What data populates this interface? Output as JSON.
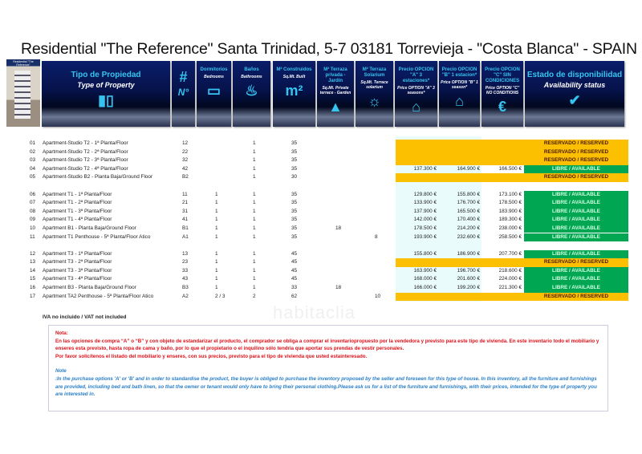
{
  "title": "Residential \"The Reference\" Santa Trinidad, 5-7   03181 Torrevieja - \"Costa Blanca\" - SPAIN",
  "logo": {
    "text": "Residential \"The Reference\""
  },
  "watermark": "habitaclia",
  "header": [
    {
      "es": "Tipo de Propiedad",
      "en": "Type of Property",
      "icon": "buildings-icon"
    },
    {
      "es": "#",
      "en": "N°",
      "icon": "hash-icon"
    },
    {
      "es": "Dormitorios",
      "en": "Bedrooms",
      "icon": "bed-icon"
    },
    {
      "es": "Baños",
      "en": "Bathrooms",
      "icon": "bath-icon"
    },
    {
      "es": "M² Construidos",
      "en": "Sq.Mt. Built",
      "icon": "m2-icon"
    },
    {
      "es": "M² Terraza privada - Jardín",
      "en": "Sq.Mt. Private terrace - Garden",
      "icon": "terrace-icon"
    },
    {
      "es": "M² Terraza Solarium",
      "en": "Sq.Mt. Terrace solarium",
      "icon": "sunbed-icon"
    },
    {
      "es": "Precio OPCION \"A\" 3 estaciones*",
      "en": "Price OPTION \"A\" 3 seasons*",
      "icon": "house-icon"
    },
    {
      "es": "Precio OPCION \"B\" 1 estacion*",
      "en": "Price OPTION \"B\" 1 season*",
      "icon": "house-icon"
    },
    {
      "es": "Precio OPCION \"C\" SIN CONDICIONES",
      "en": "Price OPTION \"C\" NO CONDITIONS",
      "icon": "euro-icon"
    },
    {
      "es": "Estado de disponibilidad",
      "en": "Availability status",
      "icon": "checkmark-icon"
    }
  ],
  "status_labels": {
    "reserved": "RESERVADO / RESERVED",
    "available": "LIBRE / AVAILABLE"
  },
  "colors": {
    "reserved": "#fdc000",
    "available": "#00a651"
  },
  "rows": [
    {
      "n": "01",
      "type": "Apartment-Studio T2 - 1ª Planta/Floor",
      "no": "12",
      "bed": "",
      "bath": "1",
      "m2": "35",
      "terr": "",
      "sol": "",
      "a": "",
      "b": "",
      "c": "",
      "status": "reserved"
    },
    {
      "n": "02",
      "type": "Apartment-Studio T2 - 2ª Planta/Floor",
      "no": "22",
      "bed": "",
      "bath": "1",
      "m2": "35",
      "terr": "",
      "sol": "",
      "a": "",
      "b": "",
      "c": "",
      "status": "reserved"
    },
    {
      "n": "03",
      "type": "Apartment-Studio T2 - 3ª Planta/Floor",
      "no": "32",
      "bed": "",
      "bath": "1",
      "m2": "35",
      "terr": "",
      "sol": "",
      "a": "",
      "b": "",
      "c": "",
      "status": "reserved"
    },
    {
      "n": "04",
      "type": "Apartment-Studio T2 - 4ª Planta/Floor",
      "no": "42",
      "bed": "",
      "bath": "1",
      "m2": "35",
      "terr": "",
      "sol": "",
      "a": "137.300 €",
      "b": "164.900 €",
      "c": "166.500 €",
      "status": "available"
    },
    {
      "n": "05",
      "type": "Apartment-Studio B2 - Planta Baja/Ground Floor",
      "no": "B2",
      "bed": "",
      "bath": "1",
      "m2": "30",
      "terr": "",
      "sol": "",
      "a": "",
      "b": "",
      "c": "",
      "status": "reserved"
    },
    {
      "n": "06",
      "type": "Apartment T1 - 1ª Planta/Floor",
      "no": "11",
      "bed": "1",
      "bath": "1",
      "m2": "35",
      "terr": "",
      "sol": "",
      "a": "129.800 €",
      "b": "155.800 €",
      "c": "173.100 €",
      "status": "available"
    },
    {
      "n": "07",
      "type": "Apartment T1 - 2ª Planta/Floor",
      "no": "21",
      "bed": "1",
      "bath": "1",
      "m2": "35",
      "terr": "",
      "sol": "",
      "a": "133.900 €",
      "b": "176.700 €",
      "c": "178.500 €",
      "status": "available"
    },
    {
      "n": "08",
      "type": "Apartment T1 - 3ª Planta/Floor",
      "no": "31",
      "bed": "1",
      "bath": "1",
      "m2": "35",
      "terr": "",
      "sol": "",
      "a": "137.900 €",
      "b": "165.500 €",
      "c": "183.900 €",
      "status": "available"
    },
    {
      "n": "09",
      "type": "Apartment T1 - 4ª Planta/Floor",
      "no": "41",
      "bed": "1",
      "bath": "1",
      "m2": "35",
      "terr": "",
      "sol": "",
      "a": "142.000 €",
      "b": "170.400 €",
      "c": "189.300 €",
      "status": "available"
    },
    {
      "n": "10",
      "type": "Apartment B1 -  Planta Baja/Ground Floor",
      "no": "B1",
      "bed": "1",
      "bath": "1",
      "m2": "35",
      "terr": "18",
      "sol": "",
      "a": "178.500 €",
      "b": "214.200 €",
      "c": "238.000 €",
      "status": "available"
    },
    {
      "n": "11",
      "type": "Apartment T1 Penthouse -  5ª Planta/Floor Atico",
      "no": "A1",
      "bed": "1",
      "bath": "1",
      "m2": "35",
      "terr": "",
      "sol": "8",
      "a": "193.900 €",
      "b": "232.600 €",
      "c": "258.500 €",
      "status": "available"
    },
    {
      "n": "12",
      "type": "Apartment T3 - 1ª Planta/Floor",
      "no": "13",
      "bed": "1",
      "bath": "1",
      "m2": "45",
      "terr": "",
      "sol": "",
      "a": "155.800 €",
      "b": "186.900 €",
      "c": "207.700 €",
      "status": "available"
    },
    {
      "n": "13",
      "type": "Apartment T3 - 2ª Planta/Floor",
      "no": "23",
      "bed": "1",
      "bath": "1",
      "m2": "45",
      "terr": "",
      "sol": "",
      "a": "",
      "b": "",
      "c": "",
      "status": "reserved"
    },
    {
      "n": "14",
      "type": "Apartment T3 - 3ª Planta/Floor",
      "no": "33",
      "bed": "1",
      "bath": "1",
      "m2": "45",
      "terr": "",
      "sol": "",
      "a": "163.900 €",
      "b": "196.700 €",
      "c": "218.600 €",
      "status": "available"
    },
    {
      "n": "15",
      "type": "Apartment T3 - 4ª Planta/Floor",
      "no": "43",
      "bed": "1",
      "bath": "1",
      "m2": "45",
      "terr": "",
      "sol": "",
      "a": "168.000 €",
      "b": "201.600 €",
      "c": "224.000 €",
      "status": "available"
    },
    {
      "n": "16",
      "type": "Apartment B3 - Planta Baja/Ground Floor",
      "no": "B3",
      "bed": "1",
      "bath": "1",
      "m2": "33",
      "terr": "18",
      "sol": "",
      "a": "166.000 €",
      "b": "199.200 €",
      "c": "221.300 €",
      "status": "available"
    },
    {
      "n": "17",
      "type": "Apartment TA2 Penthouse - 5ª Planta/Floor Atico",
      "no": "A2",
      "bed": "2 / 3",
      "bath": "2",
      "m2": "62",
      "terr": "",
      "sol": "10",
      "a": "",
      "b": "",
      "c": "",
      "status": "reserved"
    }
  ],
  "vat": "IVA no incluido / VAT not included",
  "note_es": {
    "heading": "Nota:",
    "lines": [
      "En las opciones de compra “A” o “B” y con objeto de estandarizar el producto, el comprador se obliga a comprar el inventariopropuesto por la vendedora y previsto para este tipo de vivienda. En este inventario todo el mobiliario y enseres esta previsto, hasta ropa de cama y baño, por lo que el propietario o el inquilino sólo tendria que aportar sus prendas de vestir personales.",
      "Por favor solicítenos el listado del mobiliario y enseres, con sus precios, previsto para el tipo de vivienda que usted estainteresado."
    ]
  },
  "note_en": {
    "heading": "Note",
    "text": ":In the purchase options 'A' or 'B' and in order to standardise the product, the buyer is obliged to purchase the inventory proposed by the seller and foreseen for this type of house. In this inventory, all the furniture and furnishings are provided, including bed and bath linen, so that the owner or tenant would only have to bring their personal clothing.Please ask us for a list of the furniture and furnishings, with their prices, intended for the type of property you are interested in."
  }
}
